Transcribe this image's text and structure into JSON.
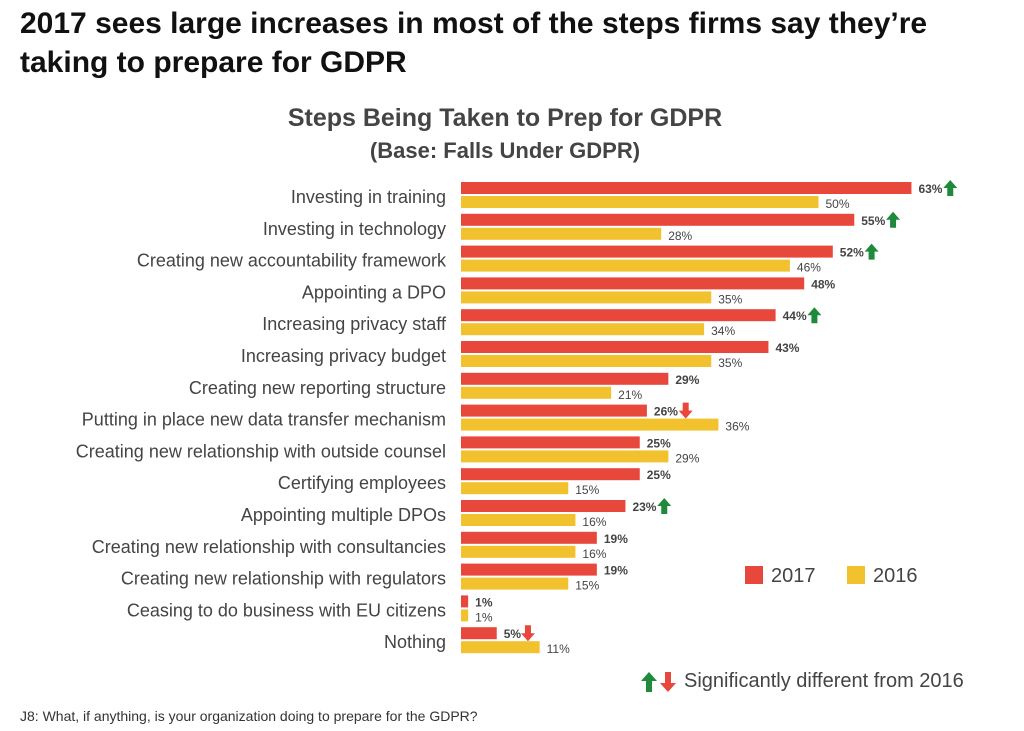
{
  "headline": "2017 sees large increases in most of the steps firms say they’re taking to prepare for GDPR",
  "footnote": "J8: What, if anything, is your organization doing to prepare for the GDPR?",
  "significance_legend": "Significantly different from 2016",
  "colors": {
    "y2017": "#e8473b",
    "y2016": "#f2c12e",
    "up": "#1f8a3b",
    "down": "#e8473b"
  },
  "chart_data": {
    "type": "bar",
    "orientation": "horizontal",
    "title": "Steps Being Taken to Prep for GDPR",
    "subtitle": "(Base: Falls Under GDPR)",
    "unit": "%",
    "xlim": [
      0,
      70
    ],
    "legend": {
      "position": "right",
      "entries": [
        "2017",
        "2016"
      ]
    },
    "categories": [
      "Investing in training",
      "Investing in technology",
      "Creating new accountability framework",
      "Appointing a DPO",
      "Increasing privacy staff",
      "Increasing privacy budget",
      "Creating new reporting structure",
      "Putting in place new data transfer mechanism",
      "Creating new relationship with outside counsel",
      "Certifying employees",
      "Appointing multiple DPOs",
      "Creating new relationship with consultancies",
      "Creating new relationship with regulators",
      "Ceasing to do business with EU citizens",
      "Nothing"
    ],
    "series": [
      {
        "name": "2017",
        "values": [
          63,
          55,
          52,
          48,
          44,
          43,
          29,
          26,
          25,
          25,
          23,
          19,
          19,
          1,
          5
        ]
      },
      {
        "name": "2016",
        "values": [
          50,
          28,
          46,
          35,
          34,
          35,
          21,
          36,
          29,
          15,
          16,
          16,
          15,
          1,
          11
        ]
      }
    ],
    "significance": [
      "up",
      "up",
      "up",
      null,
      "up",
      null,
      null,
      "down",
      null,
      null,
      "up",
      null,
      null,
      null,
      "down"
    ]
  }
}
